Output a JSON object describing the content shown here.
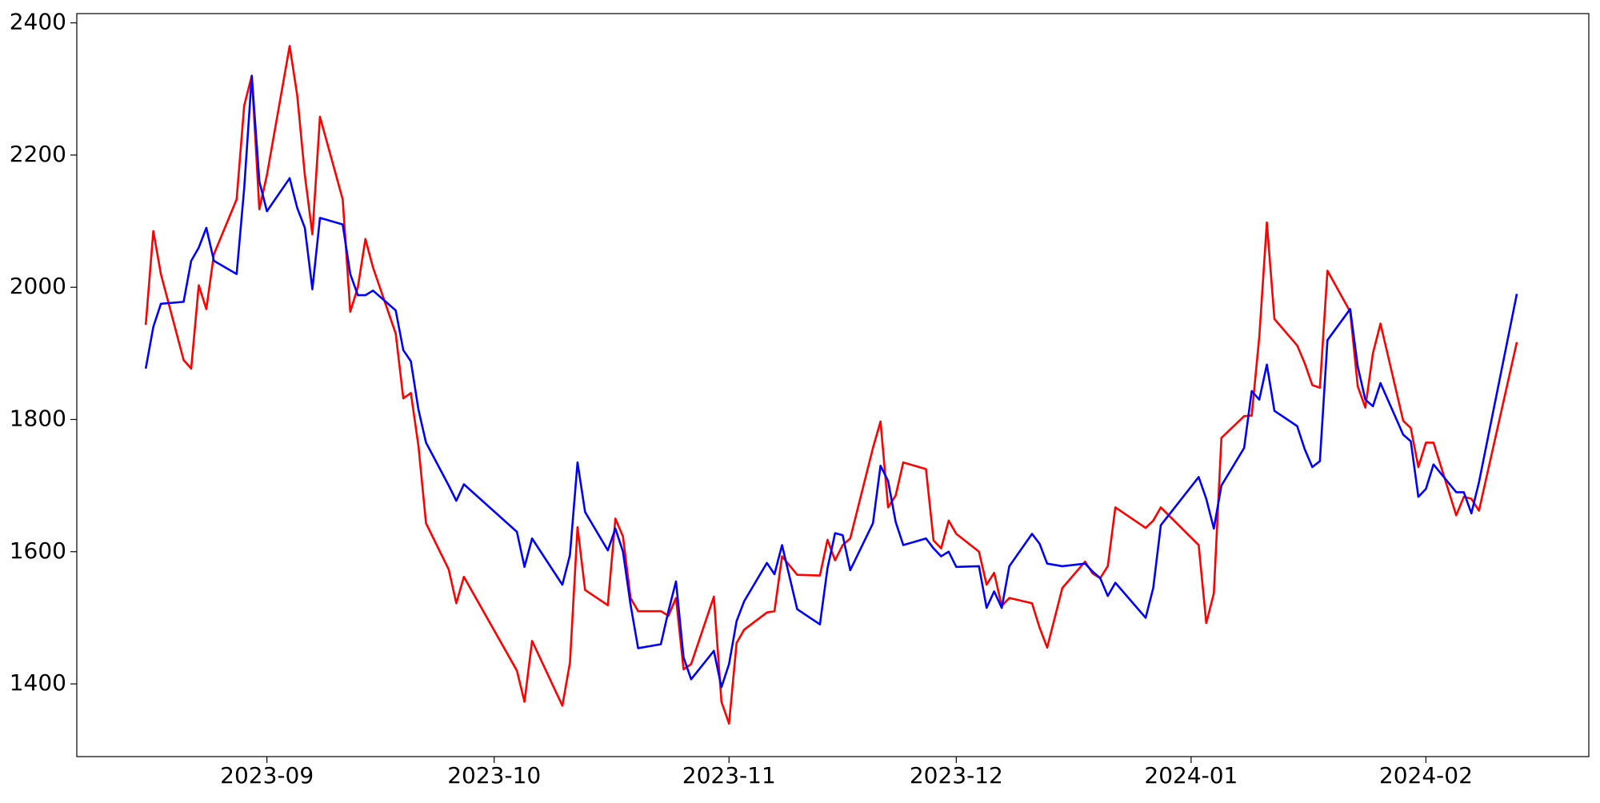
{
  "chart_data": {
    "type": "line",
    "x": [
      15,
      16,
      17,
      20,
      21,
      22,
      23,
      24,
      27,
      28,
      29,
      30,
      31,
      34,
      35,
      36,
      37,
      38,
      41,
      42,
      43,
      44,
      45,
      48,
      49,
      50,
      51,
      52,
      55,
      56,
      57,
      64,
      65,
      66,
      70,
      71,
      72,
      73,
      76,
      77,
      78,
      79,
      80,
      83,
      84,
      85,
      86,
      87,
      90,
      91,
      92,
      93,
      94,
      97,
      98,
      99,
      101,
      104,
      105,
      106,
      107,
      108,
      111,
      112,
      113,
      114,
      115,
      118,
      119,
      120,
      121,
      122,
      125,
      126,
      127,
      128,
      129,
      132,
      133,
      134,
      136,
      139,
      140,
      141,
      142,
      143,
      147,
      148,
      149,
      154,
      155,
      156,
      157,
      160,
      161,
      162,
      163,
      164,
      167,
      168,
      169,
      170,
      171,
      174,
      175,
      176,
      177,
      178,
      181,
      182,
      183,
      184,
      185,
      188,
      189,
      190,
      191,
      196
    ],
    "series": [
      {
        "color": "#ff0000",
        "values": [
          1943,
          2085,
          2020,
          1890,
          1877,
          2003,
          1967,
          2050,
          2133,
          2275,
          2320,
          2118,
          2170,
          2365,
          2290,
          2170,
          2080,
          2258,
          2133,
          1963,
          2000,
          2073,
          2030,
          1930,
          1832,
          1840,
          1760,
          1643,
          1573,
          1522,
          1562,
          1420,
          1373,
          1465,
          1367,
          1432,
          1637,
          1542,
          1519,
          1650,
          1623,
          1530,
          1510,
          1510,
          1503,
          1530,
          1422,
          1430,
          1532,
          1373,
          1340,
          1462,
          1482,
          1508,
          1510,
          1593,
          1565,
          1564,
          1618,
          1587,
          1610,
          1620,
          1757,
          1797,
          1667,
          1685,
          1735,
          1725,
          1617,
          1605,
          1647,
          1627,
          1600,
          1550,
          1568,
          1518,
          1530,
          1522,
          1485,
          1455,
          1545,
          1585,
          1567,
          1560,
          1578,
          1667,
          1636,
          1647,
          1667,
          1610,
          1492,
          1537,
          1772,
          1805,
          1806,
          1925,
          2098,
          1952,
          1912,
          1885,
          1852,
          1848,
          2025,
          1963,
          1850,
          1818,
          1900,
          1945,
          1798,
          1787,
          1728,
          1765,
          1765,
          1655,
          1683,
          1680,
          1662,
          1917
        ]
      },
      {
        "color": "#0000ff",
        "values": [
          1877,
          1940,
          1975,
          1978,
          2040,
          2060,
          2090,
          2040,
          2020,
          2150,
          2320,
          2160,
          2115,
          2165,
          2120,
          2090,
          1997,
          2105,
          2095,
          2020,
          1988,
          1988,
          1995,
          1965,
          1905,
          1888,
          1815,
          1765,
          1700,
          1677,
          1702,
          1630,
          1577,
          1620,
          1550,
          1595,
          1735,
          1660,
          1602,
          1635,
          1600,
          1520,
          1454,
          1460,
          1510,
          1555,
          1440,
          1407,
          1450,
          1395,
          1430,
          1495,
          1525,
          1583,
          1566,
          1610,
          1513,
          1490,
          1575,
          1628,
          1625,
          1572,
          1643,
          1730,
          1707,
          1645,
          1610,
          1620,
          1605,
          1593,
          1600,
          1577,
          1578,
          1515,
          1540,
          1515,
          1578,
          1627,
          1612,
          1582,
          1578,
          1582,
          1570,
          1560,
          1533,
          1553,
          1500,
          1545,
          1640,
          1713,
          1680,
          1635,
          1700,
          1757,
          1843,
          1830,
          1883,
          1813,
          1790,
          1755,
          1728,
          1737,
          1920,
          1967,
          1880,
          1830,
          1820,
          1855,
          1777,
          1767,
          1683,
          1695,
          1732,
          1690,
          1690,
          1658,
          1705,
          1990
        ]
      }
    ],
    "xlim": [
      5.9,
      205.5
    ],
    "xticks": [
      {
        "value": 31,
        "label": "2023-09"
      },
      {
        "value": 61,
        "label": "2023-10"
      },
      {
        "value": 92,
        "label": "2023-11"
      },
      {
        "value": 122,
        "label": "2023-12"
      },
      {
        "value": 153,
        "label": "2024-01"
      },
      {
        "value": 184,
        "label": "2024-02"
      }
    ],
    "ylim": [
      1290,
      2414
    ],
    "yticks": [
      1400,
      1600,
      1800,
      2000,
      2200,
      2400
    ],
    "grid": false
  }
}
